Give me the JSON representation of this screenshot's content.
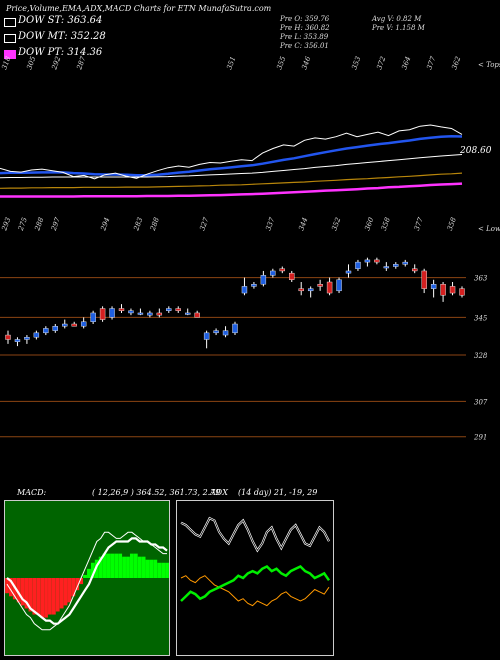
{
  "header": {
    "title": "Price,Volume,EMA,ADX,MACD Charts for ETN  MunafaSutra.com",
    "ohlc": [
      [
        "Pre  O: 359.76",
        "Avg V: 0.82  M"
      ],
      [
        "Pre  H: 360.82",
        "Pre   V: 1.158  M"
      ],
      [
        "Pre  L: 353.89",
        ""
      ],
      [
        "Pre  C: 356.01",
        ""
      ]
    ]
  },
  "legend": [
    {
      "label": "DOW ST: 363.64",
      "color": "#ffffff"
    },
    {
      "label": "DOW MT: 352.28",
      "color": "#ffffff"
    },
    {
      "label": "DOW PT: 314.36",
      "color": "#ff33ff"
    }
  ],
  "colors": {
    "up": "#1f5fe0",
    "down": "#d42020",
    "ema_st": "#2255ee",
    "ema_mt": "#ffffff",
    "ema_lt": "#b8860b",
    "ema_pt": "#ff33ff",
    "grid": "#8b4513",
    "adx_line": "#ff9900",
    "adx_plus": "#00ee00"
  },
  "chart_data": [
    {
      "type": "line",
      "name": "top",
      "corner_label": "< Tops",
      "top_labels": [
        "318",
        "305",
        "292",
        "287",
        "",
        "",
        "",
        "",
        "",
        "351",
        "",
        "355",
        "346",
        "",
        "353",
        "372",
        "364",
        "377",
        "362"
      ],
      "price_label": "208.60",
      "close": [
        339.5,
        338.2,
        337.9,
        338.8,
        339.2,
        338.5,
        337.8,
        336.0,
        336.5,
        335.0,
        336.8,
        337.5,
        336.2,
        335.2,
        337.0,
        338.5,
        339.8,
        340.5,
        340.0,
        341.2,
        342.0,
        341.8,
        342.5,
        343.2,
        342.8,
        346.0,
        348.0,
        349.5,
        349.0,
        351.5,
        352.5,
        352.0,
        353.0,
        354.5,
        353.0,
        354.0,
        355.0,
        353.5,
        355.5,
        356.0,
        357.5,
        358.0,
        357.2,
        356.5,
        354.0
      ],
      "ema_st": [
        337.5,
        337.6,
        337.6,
        337.7,
        337.8,
        337.8,
        337.8,
        337.5,
        337.3,
        337.0,
        336.9,
        336.9,
        336.8,
        336.6,
        336.6,
        336.8,
        337.2,
        337.7,
        338.1,
        338.6,
        339.1,
        339.5,
        339.9,
        340.4,
        340.8,
        341.5,
        342.3,
        343.1,
        343.8,
        344.7,
        345.6,
        346.4,
        347.2,
        348.0,
        348.6,
        349.2,
        349.8,
        350.3,
        350.9,
        351.4,
        352.1,
        352.6,
        353.0,
        353.2,
        353.1
      ],
      "ema_mt": [
        335.5,
        335.6,
        335.6,
        335.7,
        335.7,
        335.8,
        335.8,
        335.8,
        335.8,
        335.8,
        335.8,
        335.8,
        335.8,
        335.8,
        335.8,
        335.9,
        336.0,
        336.2,
        336.3,
        336.5,
        336.7,
        336.9,
        337.1,
        337.3,
        337.5,
        337.8,
        338.2,
        338.6,
        339.0,
        339.4,
        339.9,
        340.3,
        340.7,
        341.2,
        341.6,
        342.0,
        342.4,
        342.8,
        343.2,
        343.6,
        344.0,
        344.4,
        344.8,
        345.1,
        345.4
      ],
      "ema_lt": [
        331.0,
        331.1,
        331.1,
        331.2,
        331.2,
        331.3,
        331.3,
        331.3,
        331.4,
        331.4,
        331.4,
        331.4,
        331.5,
        331.5,
        331.5,
        331.6,
        331.7,
        331.8,
        331.9,
        332.0,
        332.1,
        332.3,
        332.4,
        332.5,
        332.7,
        332.9,
        333.1,
        333.3,
        333.5,
        333.7,
        334.0,
        334.2,
        334.4,
        334.7,
        334.9,
        335.1,
        335.4,
        335.6,
        335.9,
        336.1,
        336.4,
        336.7,
        337.0,
        337.2,
        337.5
      ],
      "ema_pt": [
        327.5,
        327.5,
        327.5,
        327.5,
        327.5,
        327.5,
        327.5,
        327.5,
        327.6,
        327.6,
        327.6,
        327.6,
        327.6,
        327.6,
        327.7,
        327.7,
        327.7,
        327.8,
        327.8,
        327.9,
        328.0,
        328.1,
        328.2,
        328.4,
        328.5,
        328.7,
        328.9,
        329.1,
        329.3,
        329.5,
        329.7,
        330.0,
        330.2,
        330.4,
        330.6,
        330.9,
        331.1,
        331.4,
        331.6,
        331.9,
        332.1,
        332.4,
        332.6,
        332.8,
        333.0
      ]
    },
    {
      "type": "candlestick",
      "name": "price",
      "corner_label": "< Lows",
      "low_labels": [
        "293",
        "275",
        "288",
        "297",
        "",
        "",
        "294",
        "",
        "283",
        "288",
        "",
        "",
        "327",
        "",
        "",
        "",
        "337",
        "",
        "344",
        "",
        "352",
        "",
        "360",
        "358",
        "",
        "377",
        "",
        "358"
      ],
      "y_ticks": [
        "363",
        "345",
        "328",
        "307",
        "291"
      ],
      "candles": [
        {
          "o": 337,
          "h": 339,
          "l": 333,
          "c": 335
        },
        {
          "o": 334,
          "h": 336,
          "l": 332,
          "c": 335
        },
        {
          "o": 335,
          "h": 337,
          "l": 333,
          "c": 336
        },
        {
          "o": 336,
          "h": 339,
          "l": 335,
          "c": 338
        },
        {
          "o": 338,
          "h": 341,
          "l": 337,
          "c": 340
        },
        {
          "o": 339,
          "h": 342,
          "l": 338,
          "c": 341
        },
        {
          "o": 341,
          "h": 344,
          "l": 340,
          "c": 342
        },
        {
          "o": 342,
          "h": 343,
          "l": 341,
          "c": 341
        },
        {
          "o": 341,
          "h": 345,
          "l": 340,
          "c": 343
        },
        {
          "o": 343,
          "h": 348,
          "l": 342,
          "c": 347
        },
        {
          "o": 349,
          "h": 350,
          "l": 343,
          "c": 344
        },
        {
          "o": 345,
          "h": 350,
          "l": 344,
          "c": 349
        },
        {
          "o": 349,
          "h": 351,
          "l": 347,
          "c": 348
        },
        {
          "o": 347,
          "h": 349,
          "l": 346,
          "c": 348
        },
        {
          "o": 347,
          "h": 349,
          "l": 346,
          "c": 347
        },
        {
          "o": 346,
          "h": 348,
          "l": 345,
          "c": 347
        },
        {
          "o": 347,
          "h": 349,
          "l": 345,
          "c": 346
        },
        {
          "o": 348,
          "h": 350,
          "l": 347,
          "c": 349
        },
        {
          "o": 349,
          "h": 350,
          "l": 347,
          "c": 348
        },
        {
          "o": 347,
          "h": 349,
          "l": 346,
          "c": 347
        },
        {
          "o": 347,
          "h": 348,
          "l": 345,
          "c": 345
        },
        {
          "o": 335,
          "h": 339,
          "l": 331,
          "c": 338
        },
        {
          "o": 338,
          "h": 340,
          "l": 337,
          "c": 339
        },
        {
          "o": 337,
          "h": 341,
          "l": 336,
          "c": 339
        },
        {
          "o": 338,
          "h": 343,
          "l": 337,
          "c": 342
        },
        {
          "o": 356,
          "h": 363,
          "l": 355,
          "c": 359
        },
        {
          "o": 359,
          "h": 361,
          "l": 358,
          "c": 360
        },
        {
          "o": 360,
          "h": 366,
          "l": 359,
          "c": 364
        },
        {
          "o": 364,
          "h": 367,
          "l": 363,
          "c": 366
        },
        {
          "o": 367,
          "h": 368,
          "l": 365,
          "c": 366
        },
        {
          "o": 365,
          "h": 366,
          "l": 361,
          "c": 362
        },
        {
          "o": 358,
          "h": 361,
          "l": 355,
          "c": 357
        },
        {
          "o": 357,
          "h": 359,
          "l": 354,
          "c": 358
        },
        {
          "o": 360,
          "h": 362,
          "l": 357,
          "c": 359
        },
        {
          "o": 361,
          "h": 363,
          "l": 355,
          "c": 356
        },
        {
          "o": 357,
          "h": 363,
          "l": 356,
          "c": 362
        },
        {
          "o": 365,
          "h": 369,
          "l": 363,
          "c": 366
        },
        {
          "o": 367,
          "h": 371,
          "l": 366,
          "c": 370
        },
        {
          "o": 370,
          "h": 372,
          "l": 368,
          "c": 371
        },
        {
          "o": 371,
          "h": 372,
          "l": 369,
          "c": 370
        },
        {
          "o": 368,
          "h": 370,
          "l": 366,
          "c": 368
        },
        {
          "o": 368,
          "h": 370,
          "l": 367,
          "c": 369
        },
        {
          "o": 369,
          "h": 371,
          "l": 368,
          "c": 370
        },
        {
          "o": 367,
          "h": 369,
          "l": 365,
          "c": 366
        },
        {
          "o": 366,
          "h": 367,
          "l": 356,
          "c": 358
        },
        {
          "o": 358,
          "h": 362,
          "l": 354,
          "c": 360
        },
        {
          "o": 360,
          "h": 361,
          "l": 352,
          "c": 355
        },
        {
          "o": 359,
          "h": 361,
          "l": 355,
          "c": 356
        },
        {
          "o": 358,
          "h": 359,
          "l": 354,
          "c": 355
        }
      ]
    },
    {
      "type": "bar",
      "name": "macd",
      "label": "MACD:",
      "params": "( 12,26,9 ) 364.52,  361.73,  2.79",
      "histogram": [
        -5,
        -6,
        -7,
        -8,
        -9,
        -10,
        -11,
        -12,
        -12,
        -13,
        -13,
        -12,
        -12,
        -11,
        -10,
        -9,
        -8,
        -6,
        -4,
        -2,
        1,
        3,
        5,
        6,
        7,
        8,
        8,
        8,
        8,
        8,
        7,
        7,
        8,
        8,
        7,
        7,
        6,
        6,
        6,
        5,
        5,
        5
      ],
      "macd": [
        -2,
        -4,
        -6,
        -8,
        -10,
        -12,
        -13,
        -15,
        -16,
        -17,
        -17,
        -17,
        -16,
        -15,
        -13,
        -11,
        -9,
        -6,
        -3,
        0,
        3,
        6,
        9,
        12,
        13,
        15,
        15,
        14,
        13,
        13,
        14,
        15,
        15,
        14,
        13,
        12,
        12,
        11,
        10,
        9,
        8,
        8
      ],
      "signal": [
        0,
        -1,
        -3,
        -5,
        -7,
        -8,
        -10,
        -11,
        -12,
        -13,
        -14,
        -14,
        -15,
        -15,
        -14,
        -13,
        -12,
        -10,
        -8,
        -6,
        -4,
        -2,
        1,
        4,
        6,
        8,
        10,
        11,
        12,
        12,
        12,
        12,
        13,
        13,
        12,
        12,
        12,
        11,
        11,
        10,
        10,
        9
      ],
      "range": [
        -22,
        22
      ]
    },
    {
      "type": "line",
      "name": "adx",
      "label": "ADX",
      "params": "(14 day) 21,  -19,  29",
      "di_plus": [
        20,
        22,
        24,
        23,
        21,
        22,
        24,
        25,
        26,
        27,
        28,
        29,
        31,
        30,
        32,
        33,
        32,
        34,
        35,
        33,
        34,
        32,
        31,
        33,
        34,
        35,
        33,
        32,
        30,
        31,
        32,
        29
      ],
      "di_minus": [
        30,
        31,
        29,
        28,
        30,
        31,
        29,
        27,
        26,
        25,
        24,
        22,
        20,
        21,
        19,
        18,
        20,
        19,
        18,
        20,
        21,
        23,
        24,
        22,
        21,
        20,
        21,
        23,
        25,
        24,
        23,
        26
      ],
      "adx": [
        54,
        53,
        51,
        49,
        48,
        52,
        56,
        55,
        50,
        47,
        45,
        49,
        53,
        55,
        51,
        46,
        42,
        45,
        50,
        52,
        47,
        43,
        47,
        51,
        53,
        49,
        45,
        44,
        48,
        52,
        50,
        46
      ],
      "range": [
        0,
        60
      ]
    }
  ]
}
